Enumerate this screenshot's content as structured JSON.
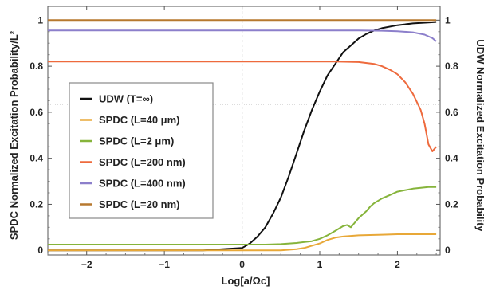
{
  "chart_data": {
    "type": "line",
    "xlabel": "Log[a/Ωc]",
    "ylabel_left": "SPDC Normalized Excitation Probability/L²",
    "ylabel_right": "UDW Normalized Excitation Probability",
    "xlim": [
      -2.5,
      2.55
    ],
    "ylim": [
      -0.02,
      1.06
    ],
    "xticks": [
      -2,
      -1,
      0,
      1,
      2
    ],
    "yticks": [
      0,
      0.2,
      0.4,
      0.6,
      0.8,
      1
    ],
    "xtick_labels": [
      "−2",
      "−1",
      "0",
      "1",
      "2"
    ],
    "ytick_labels": [
      "0",
      "0.2",
      "0.4",
      "0.6",
      "0.8",
      "1"
    ],
    "reference_lines": {
      "vertical_x": 0,
      "horizontal_y_right_axis": 0.635
    },
    "legend_position": "left",
    "series": [
      {
        "name": "UDW (T=∞)",
        "color": "#111111",
        "x": [
          -2.5,
          -0.5,
          0,
          0.1,
          0.2,
          0.3,
          0.4,
          0.5,
          0.6,
          0.7,
          0.8,
          0.9,
          1.0,
          1.1,
          1.2,
          1.3,
          1.4,
          1.5,
          1.6,
          1.7,
          1.8,
          2.0,
          2.2,
          2.4,
          2.5
        ],
        "y": [
          0.0,
          0.0,
          0.01,
          0.03,
          0.06,
          0.1,
          0.16,
          0.23,
          0.32,
          0.42,
          0.52,
          0.61,
          0.69,
          0.76,
          0.81,
          0.86,
          0.89,
          0.92,
          0.94,
          0.955,
          0.965,
          0.978,
          0.986,
          0.99,
          0.992
        ]
      },
      {
        "name": "SPDC (L=40 μm)",
        "color": "#e8a838",
        "x": [
          -2.5,
          0.5,
          0.7,
          0.8,
          0.9,
          1.0,
          1.1,
          1.2,
          1.3,
          1.5,
          1.8,
          2.0,
          2.5
        ],
        "y": [
          0.0,
          0.0,
          0.005,
          0.01,
          0.02,
          0.03,
          0.045,
          0.055,
          0.06,
          0.065,
          0.068,
          0.07,
          0.07
        ]
      },
      {
        "name": "SPDC (L=2 μm)",
        "color": "#86b43b",
        "x": [
          -2.5,
          0.3,
          0.5,
          0.7,
          0.9,
          1.0,
          1.1,
          1.2,
          1.3,
          1.35,
          1.4,
          1.45,
          1.5,
          1.55,
          1.6,
          1.65,
          1.7,
          1.8,
          1.9,
          2.0,
          2.2,
          2.4,
          2.5
        ],
        "y": [
          0.025,
          0.025,
          0.027,
          0.032,
          0.04,
          0.05,
          0.065,
          0.085,
          0.105,
          0.11,
          0.1,
          0.12,
          0.14,
          0.155,
          0.17,
          0.19,
          0.205,
          0.225,
          0.24,
          0.255,
          0.268,
          0.275,
          0.275
        ]
      },
      {
        "name": "SPDC (L=200 nm)",
        "color": "#ee6a3d",
        "x": [
          -2.5,
          1.2,
          1.5,
          1.7,
          1.8,
          1.9,
          2.0,
          2.1,
          2.2,
          2.3,
          2.35,
          2.4,
          2.45,
          2.5
        ],
        "y": [
          0.82,
          0.82,
          0.818,
          0.81,
          0.8,
          0.785,
          0.765,
          0.73,
          0.68,
          0.61,
          0.55,
          0.46,
          0.43,
          0.45
        ]
      },
      {
        "name": "SPDC (L=400 nm)",
        "color": "#8c7fcb",
        "x": [
          -2.5,
          1.0,
          1.5,
          1.8,
          2.0,
          2.2,
          2.35,
          2.45,
          2.5
        ],
        "y": [
          0.955,
          0.955,
          0.955,
          0.954,
          0.952,
          0.947,
          0.937,
          0.922,
          0.908
        ]
      },
      {
        "name": "SPDC (L=20 nm)",
        "color": "#b7792f",
        "x": [
          -2.5,
          2.5
        ],
        "y": [
          1.0,
          1.0
        ]
      }
    ]
  }
}
